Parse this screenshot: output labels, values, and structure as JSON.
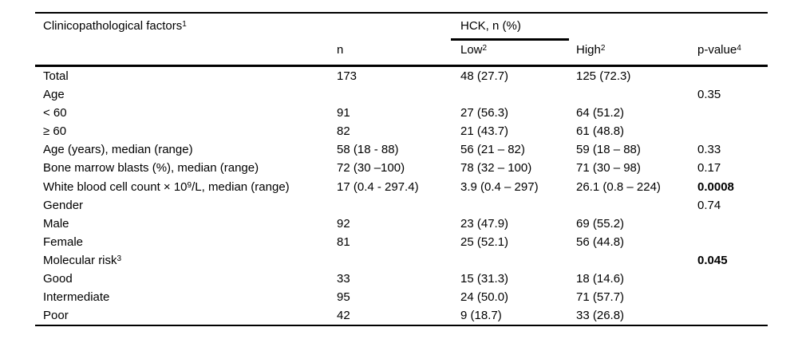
{
  "palette": {
    "background": "#ffffff",
    "text": "#000000",
    "rule": "#000000"
  },
  "table": {
    "header": {
      "factors": {
        "text": "Clinicopathological factors",
        "sup": "1"
      },
      "spanner": "HCK, n (%)",
      "n": "n",
      "low": {
        "text": "Low",
        "sup": "2"
      },
      "high": {
        "text": "High",
        "sup": "2"
      },
      "p": {
        "text": "p-value",
        "sup": "4"
      }
    },
    "rows": [
      {
        "label": [
          {
            "t": "Total"
          }
        ],
        "n": "173",
        "low": "48 (27.7)",
        "high": "125 (72.3)",
        "p": "",
        "p_bold": false
      },
      {
        "label": [
          {
            "t": "Age"
          }
        ],
        "n": "",
        "low": "",
        "high": "",
        "p": "0.35",
        "p_bold": false
      },
      {
        "label": [
          {
            "t": "< 60"
          }
        ],
        "n": "91",
        "low": "27 (56.3)",
        "high": "64 (51.2)",
        "p": "",
        "p_bold": false
      },
      {
        "label": [
          {
            "t": "≥ 60"
          }
        ],
        "n": "82",
        "low": "21 (43.7)",
        "high": "61 (48.8)",
        "p": "",
        "p_bold": false
      },
      {
        "label": [
          {
            "t": "Age (years), median (range)"
          }
        ],
        "n": "58 (18 - 88)",
        "low": "56 (21 – 82)",
        "high": "59 (18 – 88)",
        "p": "0.33",
        "p_bold": false
      },
      {
        "label": [
          {
            "t": "Bone marrow blasts (%), median (range)"
          }
        ],
        "n": "72 (30 –100)",
        "low": "78 (32 – 100)",
        "high": "71 (30 – 98)",
        "p": "0.17",
        "p_bold": false
      },
      {
        "label": [
          {
            "t": "White blood cell count × 10",
            "sup": "9"
          },
          {
            "t": "/L, median (range)"
          }
        ],
        "n": "17 (0.4 - 297.4)",
        "low": "3.9 (0.4 – 297)",
        "high": "26.1 (0.8 – 224)",
        "p": "0.0008",
        "p_bold": true
      },
      {
        "label": [
          {
            "t": "Gender"
          }
        ],
        "n": "",
        "low": "",
        "high": "",
        "p": "0.74",
        "p_bold": false
      },
      {
        "label": [
          {
            "t": "Male"
          }
        ],
        "n": "92",
        "low": "23 (47.9)",
        "high": "69 (55.2)",
        "p": "",
        "p_bold": false
      },
      {
        "label": [
          {
            "t": "Female"
          }
        ],
        "n": "81",
        "low": "25 (52.1)",
        "high": "56 (44.8)",
        "p": "",
        "p_bold": false
      },
      {
        "label": [
          {
            "t": "Molecular risk",
            "sup": "3"
          }
        ],
        "n": "",
        "low": "",
        "high": "",
        "p": "0.045",
        "p_bold": true
      },
      {
        "label": [
          {
            "t": "Good"
          }
        ],
        "n": "33",
        "low": "15 (31.3)",
        "high": "18 (14.6)",
        "p": "",
        "p_bold": false
      },
      {
        "label": [
          {
            "t": "Intermediate"
          }
        ],
        "n": "95",
        "low": "24 (50.0)",
        "high": "71 (57.7)",
        "p": "",
        "p_bold": false
      },
      {
        "label": [
          {
            "t": "Poor"
          }
        ],
        "n": "42",
        "low": "9 (18.7)",
        "high": "33 (26.8)",
        "p": "",
        "p_bold": false
      }
    ]
  }
}
